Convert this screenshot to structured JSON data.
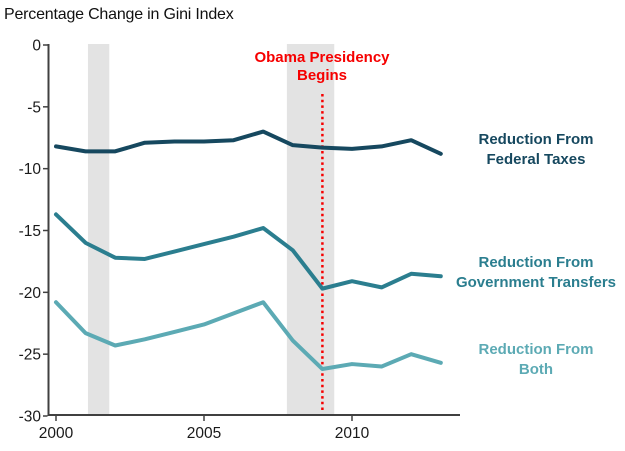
{
  "colors": {
    "background": "#ffffff",
    "recession_band": "#e3e3e3",
    "axis": "#404040",
    "tick_text": "#1a1a1a",
    "annotation_red": "#f60000"
  },
  "chart_data": {
    "type": "line",
    "title": "Percentage Change in Gini Index",
    "x": [
      2000,
      2001,
      2002,
      2003,
      2004,
      2005,
      2006,
      2007,
      2008,
      2009,
      2010,
      2011,
      2012,
      2013
    ],
    "series": [
      {
        "name": "Reduction From Federal Taxes",
        "label": "Reduction From\nFederal Taxes",
        "color": "#16485f",
        "values": [
          -8.2,
          -8.6,
          -8.6,
          -7.9,
          -7.8,
          -7.8,
          -7.7,
          -7.0,
          -8.1,
          -8.3,
          -8.4,
          -8.2,
          -7.7,
          -8.8
        ]
      },
      {
        "name": "Reduction From Government Transfers",
        "label": "Reduction From\nGovernment Transfers",
        "color": "#2b7e8f",
        "values": [
          -13.7,
          -16.0,
          -17.2,
          -17.3,
          -16.7,
          -16.1,
          -15.5,
          -14.8,
          -16.6,
          -19.7,
          -19.1,
          -19.6,
          -18.5,
          -18.7
        ]
      },
      {
        "name": "Reduction From Both",
        "label": "Reduction From\nBoth",
        "color": "#5caab4",
        "values": [
          -20.8,
          -23.3,
          -24.3,
          -23.8,
          -23.2,
          -22.6,
          -21.7,
          -20.8,
          -23.9,
          -26.2,
          -25.8,
          -26.0,
          -25.0,
          -25.7
        ]
      }
    ],
    "xticks": [
      2000,
      2005,
      2010
    ],
    "yticks": [
      0,
      -5,
      -10,
      -15,
      -20,
      -25,
      -30
    ],
    "xlim": [
      1999.75,
      2013.65
    ],
    "ylim": [
      -30,
      0
    ],
    "grid": false,
    "legend_position": "right-of-lines",
    "recession_bands": [
      {
        "from": 2001.08,
        "to": 2001.8
      },
      {
        "from": 2007.8,
        "to": 2009.4
      }
    ],
    "annotation": {
      "label": "Obama Presidency\nBegins",
      "x": 2009,
      "color": "#f60000"
    }
  }
}
